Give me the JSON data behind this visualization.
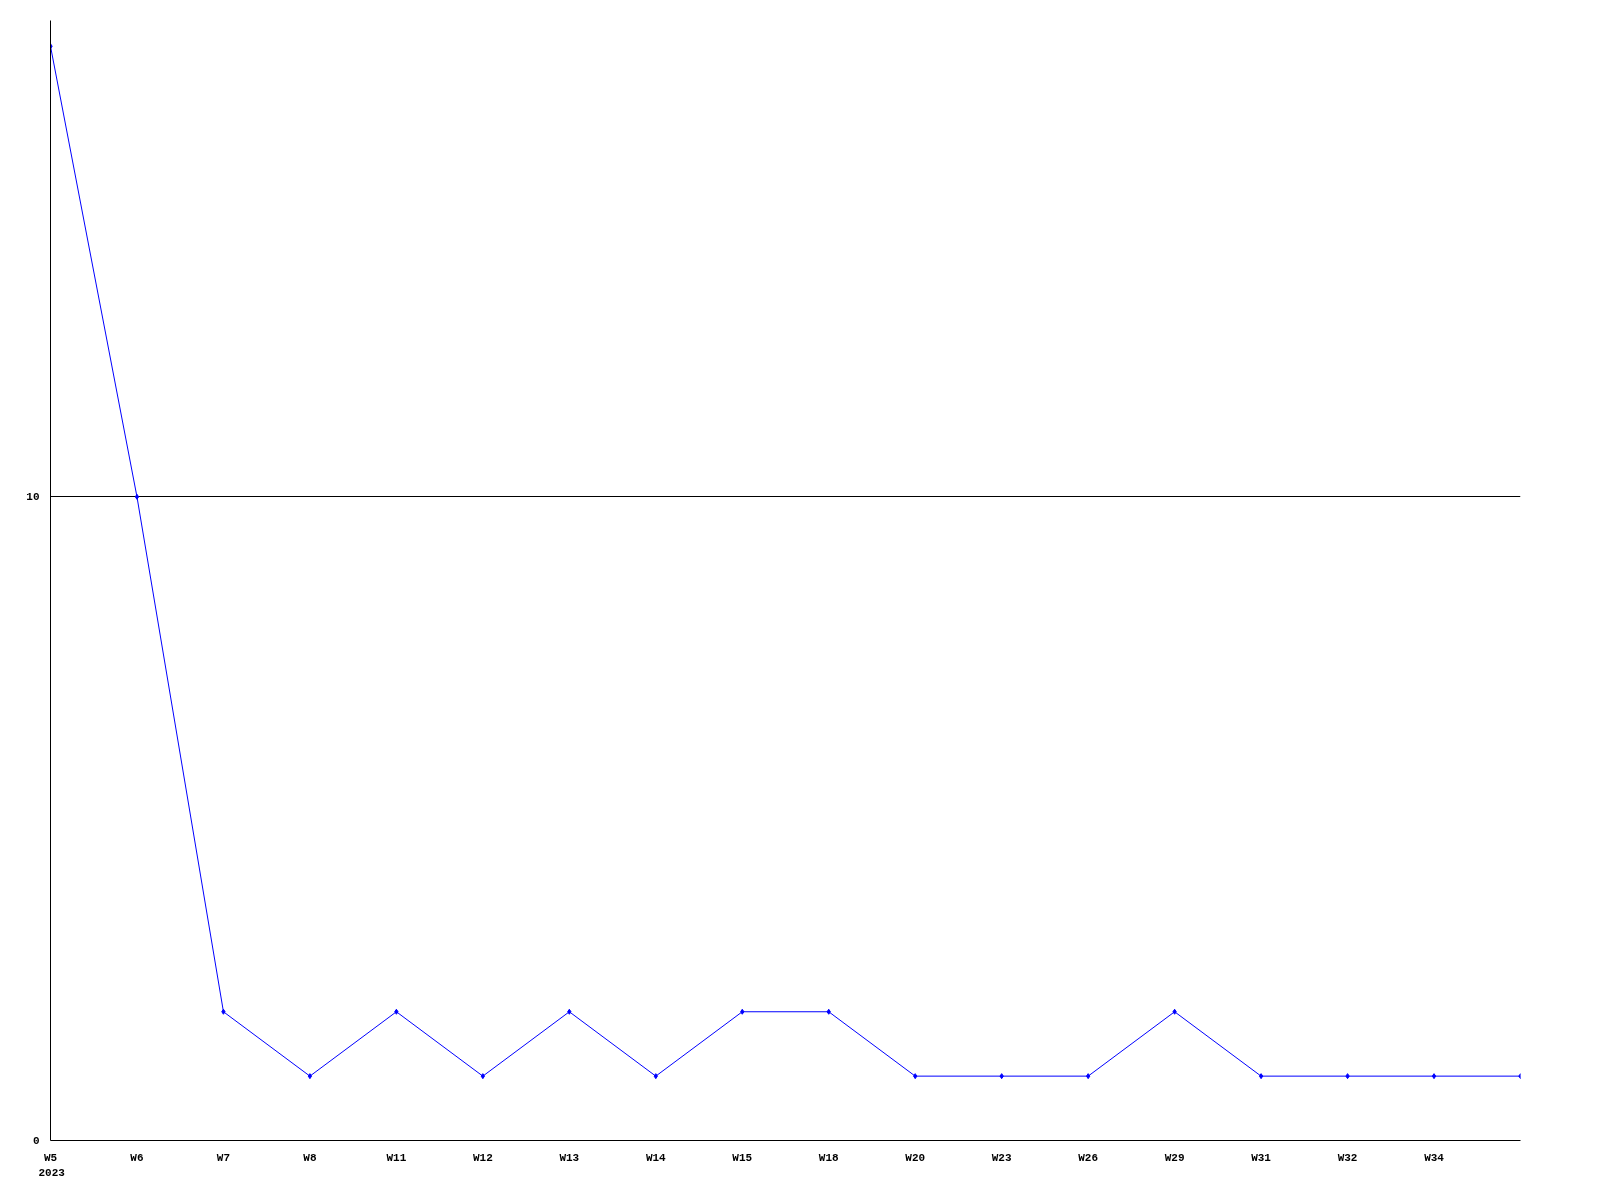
{
  "chart_data": {
    "type": "line",
    "categories": [
      "W5",
      "W6",
      "W7",
      "W8",
      "W11",
      "W12",
      "W13",
      "W14",
      "W15",
      "W18",
      "W20",
      "W23",
      "W26",
      "W29",
      "W31",
      "W32",
      "W34",
      null
    ],
    "series": [
      {
        "color": "#0000ff",
        "values": [
          17,
          10,
          2,
          1,
          2,
          1,
          2,
          1,
          2,
          2,
          1,
          1,
          1,
          2,
          1,
          1,
          1,
          1
        ]
      }
    ],
    "ylim": [
      0,
      17.4
    ],
    "yticks": [
      0,
      10
    ],
    "grid": "y",
    "marker": "diamond",
    "line_style": "solid",
    "annotations": [
      "2023"
    ]
  }
}
